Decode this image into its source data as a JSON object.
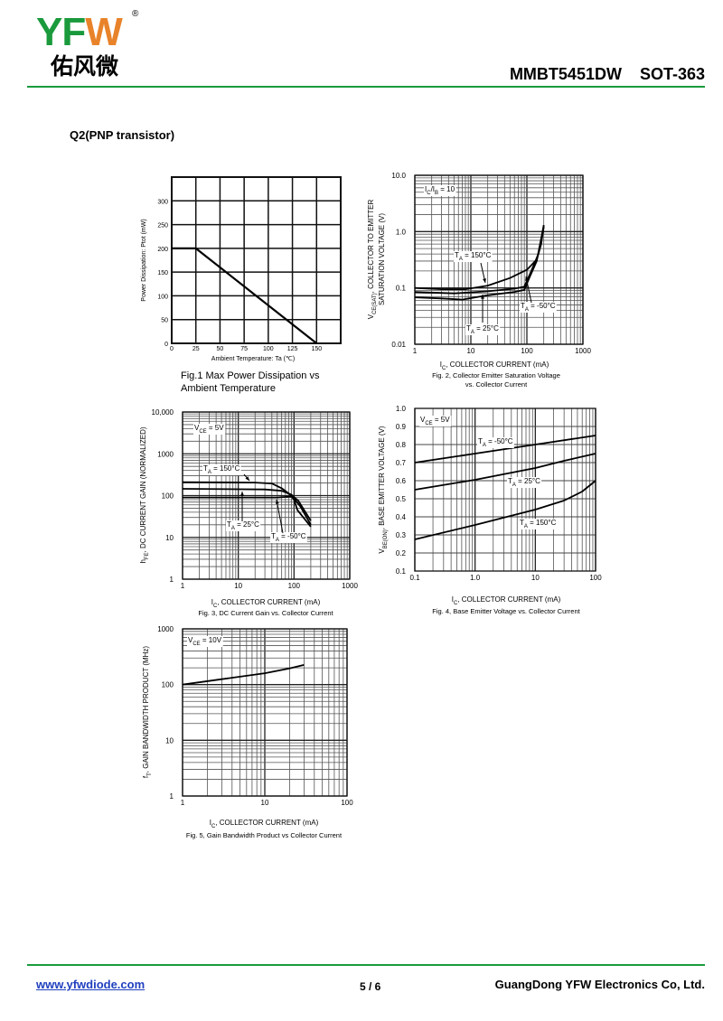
{
  "header": {
    "logo_latin": "YFW",
    "logo_cn": "佑风微",
    "registered": "®",
    "title": "MMBT5451DW    SOT-363"
  },
  "section_title": "Q2(PNP transistor)",
  "footer": {
    "link": "www.yfwdiode.com",
    "page": "5 / 6",
    "company": "GuangDong YFW Electronics Co, Ltd."
  },
  "colors": {
    "green": "#1a9a3c",
    "orange": "#e8832a",
    "link": "#1f3fbf"
  },
  "chart_data": [
    {
      "id": "fig1",
      "type": "line",
      "xscale": "linear",
      "yscale": "linear",
      "xlim": [
        0,
        175
      ],
      "ylim": [
        0,
        350
      ],
      "xticks": [
        [
          0,
          "0"
        ],
        [
          25,
          "25"
        ],
        [
          50,
          "50"
        ],
        [
          75,
          "75"
        ],
        [
          100,
          "100"
        ],
        [
          125,
          "125"
        ],
        [
          150,
          "150"
        ]
      ],
      "yticks": [
        [
          0,
          "0"
        ],
        [
          50,
          "50"
        ],
        [
          100,
          "100"
        ],
        [
          150,
          "150"
        ],
        [
          200,
          "200"
        ],
        [
          250,
          "250"
        ],
        [
          300,
          "300"
        ]
      ],
      "xlabel": [
        {
          "t": "Ambient Temperature: Ta (℃)"
        }
      ],
      "ylabel": [
        [
          {
            "t": "Power Dissipation: Ptot (mW)"
          }
        ]
      ],
      "caption": [
        "Fig.1 Max Power Dissipation vs",
        "Ambient Temperature"
      ],
      "series": [
        {
          "name": "Ptot",
          "points": [
            [
              0,
              200
            ],
            [
              25,
              200
            ],
            [
              150,
              0
            ]
          ]
        }
      ],
      "annotations": []
    },
    {
      "id": "fig2",
      "type": "line",
      "xscale": "log",
      "yscale": "log",
      "xlim": [
        1,
        1000
      ],
      "ylim": [
        0.01,
        10
      ],
      "xticks": [
        [
          1,
          "1"
        ],
        [
          10,
          "10"
        ],
        [
          100,
          "100"
        ],
        [
          1000,
          "1000"
        ]
      ],
      "yticks": [
        [
          0.01,
          "0.01"
        ],
        [
          0.1,
          "0.1"
        ],
        [
          1,
          "1.0"
        ],
        [
          10,
          "10.0"
        ]
      ],
      "xlabel": [
        {
          "t": "I"
        },
        {
          "s": "C"
        },
        {
          "t": ", COLLECTOR CURRENT (mA)"
        }
      ],
      "ylabel": [
        [
          {
            "t": "V"
          },
          {
            "s": "CE(SAT)"
          },
          {
            "t": ", COLLECTOR TO EMITTER"
          }
        ],
        [
          {
            "t": "SATURATION VOLTAGE (V)"
          }
        ]
      ],
      "caption": [
        "Fig. 2, Collector Emitter Saturation Voltage",
        "vs. Collector Current"
      ],
      "series": [
        {
          "name": "TA = 150°C",
          "points": [
            [
              1,
              0.1
            ],
            [
              3,
              0.095
            ],
            [
              8,
              0.095
            ],
            [
              20,
              0.11
            ],
            [
              50,
              0.15
            ],
            [
              100,
              0.21
            ],
            [
              150,
              0.32
            ],
            [
              180,
              0.6
            ],
            [
              200,
              1.3
            ]
          ]
        },
        {
          "name": "TA = 25°C",
          "points": [
            [
              1,
              0.085
            ],
            [
              5,
              0.08
            ],
            [
              20,
              0.087
            ],
            [
              60,
              0.097
            ],
            [
              90,
              0.105
            ],
            [
              120,
              0.2
            ],
            [
              160,
              0.4
            ],
            [
              200,
              1.2
            ]
          ]
        },
        {
          "name": "TA = -50°C",
          "points": [
            [
              1,
              0.068
            ],
            [
              3,
              0.065
            ],
            [
              7,
              0.062
            ],
            [
              20,
              0.074
            ],
            [
              60,
              0.085
            ],
            [
              90,
              0.092
            ],
            [
              110,
              0.15
            ],
            [
              150,
              0.3
            ],
            [
              200,
              1.3
            ]
          ]
        }
      ],
      "annotations": [
        [
          {
            "t": "I"
          },
          {
            "s": "C"
          },
          {
            "t": "/I"
          },
          {
            "s": "B"
          },
          {
            "t": " = 10"
          }
        ],
        [
          {
            "t": "T"
          },
          {
            "s": "A"
          },
          {
            "t": " = 150°C"
          }
        ],
        [
          {
            "t": "T"
          },
          {
            "s": "A"
          },
          {
            "t": " = -50°C"
          }
        ],
        [
          {
            "t": "T"
          },
          {
            "s": "A"
          },
          {
            "t": " = 25°C"
          }
        ]
      ]
    },
    {
      "id": "fig3",
      "type": "line",
      "xscale": "log",
      "yscale": "log",
      "xlim": [
        1,
        1000
      ],
      "ylim": [
        1,
        10000
      ],
      "xticks": [
        [
          1,
          "1"
        ],
        [
          10,
          "10"
        ],
        [
          100,
          "100"
        ],
        [
          1000,
          "1000"
        ]
      ],
      "yticks": [
        [
          1,
          "1"
        ],
        [
          10,
          "10"
        ],
        [
          100,
          "100"
        ],
        [
          1000,
          "1000"
        ],
        [
          10000,
          "10,000"
        ]
      ],
      "xlabel": [
        {
          "t": "I"
        },
        {
          "s": "C"
        },
        {
          "t": ", COLLECTOR CURRENT (mA)"
        }
      ],
      "ylabel": [
        [
          {
            "t": "h"
          },
          {
            "s": "FE"
          },
          {
            "t": ", DC CURRENT GAIN (NORMALIZED)"
          }
        ]
      ],
      "caption": [
        "Fig. 3, DC Current Gain vs. Collector Current"
      ],
      "series": [
        {
          "name": "TA = 150°C",
          "points": [
            [
              1,
              210
            ],
            [
              20,
              205
            ],
            [
              40,
              195
            ],
            [
              60,
              150
            ],
            [
              90,
              100
            ],
            [
              130,
              55
            ],
            [
              200,
              20
            ]
          ]
        },
        {
          "name": "TA = 25°C",
          "points": [
            [
              1,
              145
            ],
            [
              30,
              140
            ],
            [
              60,
              130
            ],
            [
              90,
              105
            ],
            [
              120,
              75
            ],
            [
              200,
              25
            ]
          ]
        },
        {
          "name": "TA = -50°C",
          "points": [
            [
              1,
              90
            ],
            [
              50,
              90
            ],
            [
              90,
              95
            ],
            [
              100,
              80
            ],
            [
              115,
              45
            ],
            [
              200,
              18
            ]
          ]
        }
      ],
      "annotations": [
        [
          {
            "t": "V"
          },
          {
            "s": "CE"
          },
          {
            "t": " = 5V"
          }
        ],
        [
          {
            "t": "T"
          },
          {
            "s": "A"
          },
          {
            "t": " = 150°C"
          }
        ],
        [
          {
            "t": "T"
          },
          {
            "s": "A"
          },
          {
            "t": " = 25°C"
          }
        ],
        [
          {
            "t": "T"
          },
          {
            "s": "A"
          },
          {
            "t": " = -50°C"
          }
        ]
      ]
    },
    {
      "id": "fig4",
      "type": "line",
      "xscale": "log",
      "yscale": "linear",
      "xlim": [
        0.1,
        100
      ],
      "ylim": [
        0.1,
        1.0
      ],
      "xticks": [
        [
          0.1,
          "0.1"
        ],
        [
          1,
          "1.0"
        ],
        [
          10,
          "10"
        ],
        [
          100,
          "100"
        ]
      ],
      "yticks": [
        [
          0.1,
          "0.1"
        ],
        [
          0.2,
          "0.2"
        ],
        [
          0.3,
          "0.3"
        ],
        [
          0.4,
          "0.4"
        ],
        [
          0.5,
          "0.5"
        ],
        [
          0.6,
          "0.6"
        ],
        [
          0.7,
          "0.7"
        ],
        [
          0.8,
          "0.8"
        ],
        [
          0.9,
          "0.9"
        ],
        [
          1.0,
          "1.0"
        ]
      ],
      "xlabel": [
        {
          "t": "I"
        },
        {
          "s": "C"
        },
        {
          "t": ", COLLECTOR CURRENT (mA)"
        }
      ],
      "ylabel": [
        [
          {
            "t": "V"
          },
          {
            "s": "BE(ON)"
          },
          {
            "t": ", BASE EMITTER VOLTAGE (V)"
          }
        ]
      ],
      "caption": [
        "Fig. 4, Base Emitter Voltage vs. Collector Current"
      ],
      "series": [
        {
          "name": "TA = -50°C",
          "points": [
            [
              0.1,
              0.7
            ],
            [
              1,
              0.75
            ],
            [
              10,
              0.8
            ],
            [
              100,
              0.85
            ]
          ]
        },
        {
          "name": "TA = 25°C",
          "points": [
            [
              0.1,
              0.55
            ],
            [
              1,
              0.605
            ],
            [
              10,
              0.67
            ],
            [
              30,
              0.71
            ],
            [
              100,
              0.75
            ]
          ]
        },
        {
          "name": "TA = 150°C",
          "points": [
            [
              0.1,
              0.275
            ],
            [
              1,
              0.355
            ],
            [
              10,
              0.44
            ],
            [
              30,
              0.49
            ],
            [
              60,
              0.54
            ],
            [
              100,
              0.6
            ]
          ]
        }
      ],
      "annotations": [
        [
          {
            "t": "V"
          },
          {
            "s": "CE"
          },
          {
            "t": " = 5V"
          }
        ],
        [
          {
            "t": "T"
          },
          {
            "s": "A"
          },
          {
            "t": " = -50°C"
          }
        ],
        [
          {
            "t": "T"
          },
          {
            "s": "A"
          },
          {
            "t": " = 25°C"
          }
        ],
        [
          {
            "t": "T"
          },
          {
            "s": "A"
          },
          {
            "t": " = 150°C"
          }
        ]
      ]
    },
    {
      "id": "fig5",
      "type": "line",
      "xscale": "log",
      "yscale": "log",
      "xlim": [
        1,
        100
      ],
      "ylim": [
        1,
        1000
      ],
      "xticks": [
        [
          1,
          "1"
        ],
        [
          10,
          "10"
        ],
        [
          100,
          "100"
        ]
      ],
      "yticks": [
        [
          1,
          "1"
        ],
        [
          10,
          "10"
        ],
        [
          100,
          "100"
        ],
        [
          1000,
          "1000"
        ]
      ],
      "xlabel": [
        {
          "t": "I"
        },
        {
          "s": "C"
        },
        {
          "t": ", COLLECTOR CURRENT (mA)"
        }
      ],
      "ylabel": [
        [
          {
            "t": "f"
          },
          {
            "s": "T"
          },
          {
            "t": ", GAIN BANDWIDTH PRODUCT (MHz)"
          }
        ]
      ],
      "caption": [
        "Fig. 5, Gain Bandwidth Product vs Collector Current"
      ],
      "series": [
        {
          "name": "VCE = 10V",
          "points": [
            [
              1,
              100
            ],
            [
              3,
              125
            ],
            [
              10,
              160
            ],
            [
              20,
              195
            ],
            [
              30,
              225
            ]
          ]
        }
      ],
      "annotations": [
        [
          {
            "t": "V"
          },
          {
            "s": "CE"
          },
          {
            "t": " = 10V"
          }
        ]
      ]
    }
  ]
}
